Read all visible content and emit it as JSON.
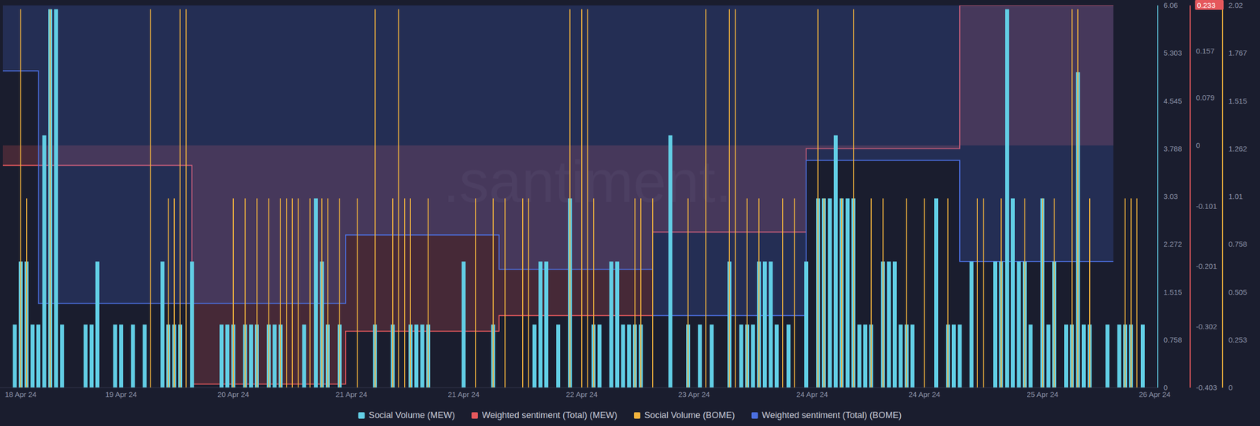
{
  "chart_data": {
    "type": "bar",
    "annotations": [
      ".santiment."
    ],
    "legend": "bottom",
    "categories": [
      null,
      null,
      null,
      "18 Apr 24",
      null,
      null,
      null,
      null,
      null,
      null,
      null,
      null,
      null,
      null,
      null,
      null,
      null,
      null,
      null,
      null,
      "19 Apr 24",
      null,
      null,
      null,
      null,
      null,
      null,
      null,
      null,
      null,
      null,
      null,
      null,
      null,
      null,
      null,
      null,
      null,
      null,
      "20 Apr 24",
      null,
      null,
      null,
      null,
      null,
      null,
      null,
      null,
      null,
      null,
      null,
      null,
      null,
      null,
      null,
      null,
      null,
      null,
      null,
      "21 Apr 24",
      null,
      null,
      null,
      null,
      null,
      null,
      null,
      null,
      null,
      null,
      null,
      null,
      null,
      null,
      null,
      null,
      null,
      null,
      "21 Apr 24",
      null,
      null,
      null,
      null,
      null,
      null,
      null,
      null,
      null,
      null,
      null,
      null,
      null,
      null,
      null,
      null,
      null,
      null,
      null,
      "22 Apr 24",
      null,
      null,
      null,
      null,
      null,
      null,
      null,
      null,
      null,
      null,
      null,
      null,
      null,
      null,
      null,
      null,
      null,
      null,
      "23 Apr 24",
      null,
      null,
      null,
      null,
      null,
      null,
      null,
      null,
      null,
      null,
      null,
      null,
      null,
      null,
      null,
      null,
      null,
      null,
      null,
      "24 Apr 24",
      null,
      null,
      null,
      null,
      null,
      null,
      null,
      null,
      null,
      null,
      null,
      null,
      null,
      null,
      null,
      null,
      null,
      null,
      "24 Apr 24",
      null,
      null,
      null,
      null,
      null,
      null,
      null,
      null,
      null,
      null,
      null,
      null,
      null,
      null,
      null,
      null,
      null,
      null,
      null,
      "25 Apr 24",
      null,
      null,
      null,
      null,
      null,
      null,
      null,
      null,
      null,
      null,
      null,
      null,
      null,
      null,
      null,
      null,
      null,
      null,
      "26 Apr 24"
    ],
    "ylim": [
      0,
      6.06
    ],
    "yticks": [
      0,
      0.758,
      1.515,
      2.272,
      3.03,
      3.788,
      4.545,
      5.303,
      6.06
    ],
    "y2lim": [
      -0.403,
      0.233
    ],
    "y2ticks": [
      -0.403,
      -0.302,
      -0.201,
      -0.101,
      0,
      0.079,
      0.157,
      0.233
    ],
    "y3lim": [
      0,
      2.02
    ],
    "y3ticks": [
      0,
      0.253,
      0.505,
      0.758,
      1.01,
      1.262,
      1.515,
      1.767,
      2.02
    ],
    "series": [
      {
        "name": "Social Volume (MEW)",
        "color": "#62cfe6",
        "type": "bar",
        "axis": "y",
        "values": [
          0,
          0,
          1,
          2,
          2,
          1,
          1,
          4,
          6,
          6,
          1,
          0,
          0,
          0,
          1,
          1,
          2,
          0,
          0,
          1,
          1,
          0,
          1,
          0,
          1,
          0,
          0,
          2,
          1,
          1,
          1,
          0,
          2,
          0,
          0,
          0,
          0,
          1,
          1,
          1,
          0,
          1,
          1,
          1,
          0,
          1,
          1,
          1,
          0,
          0,
          0,
          1,
          0,
          3,
          2,
          1,
          0,
          1,
          0,
          0,
          0,
          0,
          0,
          1,
          0,
          0,
          1,
          0,
          0,
          1,
          1,
          1,
          1,
          0,
          0,
          0,
          0,
          0,
          2,
          0,
          0,
          0,
          0,
          1,
          0,
          0,
          0,
          0,
          0,
          0,
          1,
          2,
          2,
          0,
          1,
          0,
          3,
          0,
          0,
          0,
          1,
          1,
          0,
          2,
          2,
          1,
          1,
          1,
          1,
          0,
          0,
          0,
          0,
          4,
          0,
          0,
          1,
          0,
          1,
          0,
          1,
          0,
          0,
          2,
          0,
          1,
          1,
          1,
          2,
          2,
          2,
          1,
          0,
          1,
          0,
          0,
          2,
          0,
          3,
          3,
          3,
          4,
          3,
          3,
          3,
          1,
          1,
          1,
          0,
          2,
          2,
          2,
          1,
          1,
          1,
          0,
          0,
          0,
          3,
          0,
          1,
          1,
          1,
          0,
          2,
          0,
          0,
          0,
          2,
          2,
          6,
          3,
          2,
          2,
          1,
          0,
          3,
          1,
          2,
          0,
          1,
          1,
          5,
          1,
          1,
          0,
          0,
          1,
          0,
          1,
          1,
          1,
          0,
          1,
          0,
          0
        ]
      },
      {
        "name": "Weighted sentiment (Total) (MEW)",
        "color": "#e5585c",
        "type": "area",
        "line_style": "step",
        "axis": "y2",
        "values": [
          -0.033,
          -0.033,
          -0.033,
          -0.033,
          -0.033,
          -0.033,
          -0.033,
          -0.033,
          -0.033,
          -0.033,
          -0.033,
          -0.033,
          -0.033,
          -0.033,
          -0.033,
          -0.033,
          -0.033,
          -0.033,
          -0.033,
          -0.033,
          -0.033,
          -0.033,
          -0.033,
          -0.033,
          -0.033,
          -0.033,
          -0.033,
          -0.033,
          -0.033,
          -0.033,
          -0.033,
          -0.033,
          -0.397,
          -0.397,
          -0.397,
          -0.397,
          -0.397,
          -0.397,
          -0.397,
          -0.397,
          -0.397,
          -0.397,
          -0.397,
          -0.397,
          -0.397,
          -0.397,
          -0.397,
          -0.397,
          -0.397,
          -0.397,
          -0.397,
          -0.397,
          -0.397,
          -0.397,
          -0.397,
          -0.397,
          -0.397,
          -0.397,
          -0.309,
          -0.309,
          -0.309,
          -0.309,
          -0.309,
          -0.309,
          -0.309,
          -0.309,
          -0.309,
          -0.309,
          -0.309,
          -0.309,
          -0.309,
          -0.309,
          -0.309,
          -0.309,
          -0.309,
          -0.309,
          -0.309,
          -0.309,
          -0.309,
          -0.309,
          -0.309,
          -0.309,
          -0.309,
          -0.309,
          -0.283,
          -0.283,
          -0.283,
          -0.283,
          -0.283,
          -0.283,
          -0.283,
          -0.283,
          -0.283,
          -0.283,
          -0.283,
          -0.283,
          -0.283,
          -0.283,
          -0.283,
          -0.283,
          -0.283,
          -0.283,
          -0.283,
          -0.283,
          -0.283,
          -0.283,
          -0.283,
          -0.283,
          -0.283,
          -0.283,
          -0.144,
          -0.144,
          -0.144,
          -0.144,
          -0.144,
          -0.144,
          -0.144,
          -0.144,
          -0.144,
          -0.144,
          -0.144,
          -0.144,
          -0.144,
          -0.144,
          -0.144,
          -0.144,
          -0.144,
          -0.144,
          -0.144,
          -0.144,
          -0.144,
          -0.144,
          -0.144,
          -0.144,
          -0.144,
          -0.144,
          -0.005,
          -0.005,
          -0.005,
          -0.005,
          -0.005,
          -0.005,
          -0.005,
          -0.005,
          -0.005,
          -0.005,
          -0.005,
          -0.005,
          -0.005,
          -0.005,
          -0.005,
          -0.005,
          -0.005,
          -0.005,
          -0.005,
          -0.005,
          -0.005,
          -0.005,
          -0.005,
          -0.005,
          -0.005,
          -0.005,
          0.233,
          0.233,
          0.233,
          0.233,
          0.233,
          0.233,
          0.233,
          0.233,
          0.233,
          0.233,
          0.233,
          0.233,
          0.233,
          0.233,
          0.233,
          0.233,
          0.233,
          0.233,
          0.233,
          0.233,
          0.233,
          0.233,
          0.233,
          0.233,
          0.233,
          0.233,
          0.233,
          null,
          null,
          null,
          null,
          null,
          null,
          null
        ]
      },
      {
        "name": "Social Volume (BOME)",
        "color": "#f2b33d",
        "type": "bar",
        "axis": "y3",
        "values": [
          0,
          0,
          0,
          2,
          1,
          0,
          0,
          0,
          2,
          0,
          0,
          0,
          0,
          0,
          0,
          0,
          0,
          0,
          0,
          0,
          0,
          0,
          0,
          0,
          0,
          2,
          0,
          0,
          1,
          1,
          2,
          2,
          0,
          0,
          0,
          0,
          0,
          0,
          0,
          1,
          0,
          1,
          0,
          1,
          0,
          1,
          0,
          1,
          1,
          1,
          1,
          0,
          1,
          0,
          1,
          1,
          0,
          1,
          0,
          0,
          1,
          0,
          0,
          2,
          0,
          0,
          1,
          2,
          1,
          1,
          0,
          0,
          1,
          0,
          0,
          0,
          0,
          0,
          0,
          0,
          1,
          0,
          0,
          1,
          0,
          1,
          0,
          0,
          1,
          1,
          0,
          0,
          0,
          0,
          0,
          0,
          2,
          0,
          2,
          2,
          1,
          0,
          0,
          0,
          0,
          0,
          0,
          1,
          1,
          0,
          1,
          0,
          0,
          0,
          0,
          0,
          1,
          0,
          0,
          2,
          0,
          0,
          0,
          2,
          2,
          0,
          1,
          0,
          1,
          0,
          0,
          0,
          1,
          0,
          1,
          0,
          0,
          0,
          2,
          1,
          0,
          0,
          1,
          0,
          2,
          0,
          0,
          1,
          0,
          1,
          0,
          0,
          0,
          1,
          0,
          0,
          1,
          0,
          0,
          0,
          1,
          0,
          0,
          0,
          0,
          1,
          1,
          0,
          0,
          1,
          0,
          0,
          0,
          1,
          0,
          0,
          1,
          0,
          1,
          0,
          0,
          2,
          2,
          0,
          1,
          0,
          0,
          0,
          0,
          0,
          1,
          1,
          1,
          0,
          0,
          0
        ]
      },
      {
        "name": "Weighted sentiment (Total) (BOME)",
        "color": "#4b6fe0",
        "type": "area",
        "line_style": "step",
        "axis": "y2",
        "values": [
          0.124,
          0.124,
          0.124,
          0.124,
          0.124,
          0.124,
          -0.263,
          -0.263,
          -0.263,
          -0.263,
          -0.263,
          -0.263,
          -0.263,
          -0.263,
          -0.263,
          -0.263,
          -0.263,
          -0.263,
          -0.263,
          -0.263,
          -0.263,
          -0.263,
          -0.263,
          -0.263,
          -0.263,
          -0.263,
          -0.263,
          -0.263,
          -0.263,
          -0.263,
          -0.263,
          -0.263,
          -0.263,
          -0.263,
          -0.263,
          -0.263,
          -0.263,
          -0.263,
          -0.263,
          -0.263,
          -0.263,
          -0.263,
          -0.263,
          -0.263,
          -0.263,
          -0.263,
          -0.263,
          -0.263,
          -0.263,
          -0.263,
          -0.263,
          -0.263,
          -0.263,
          -0.263,
          -0.263,
          -0.263,
          -0.263,
          -0.263,
          -0.149,
          -0.149,
          -0.149,
          -0.149,
          -0.149,
          -0.149,
          -0.149,
          -0.149,
          -0.149,
          -0.149,
          -0.149,
          -0.149,
          -0.149,
          -0.149,
          -0.149,
          -0.149,
          -0.149,
          -0.149,
          -0.149,
          -0.149,
          -0.149,
          -0.149,
          -0.149,
          -0.149,
          -0.149,
          -0.149,
          -0.206,
          -0.206,
          -0.206,
          -0.206,
          -0.206,
          -0.206,
          -0.206,
          -0.206,
          -0.206,
          -0.206,
          -0.206,
          -0.206,
          -0.206,
          -0.206,
          -0.206,
          -0.206,
          -0.206,
          -0.206,
          -0.206,
          -0.206,
          -0.206,
          -0.206,
          -0.206,
          -0.206,
          -0.206,
          -0.206,
          -0.283,
          -0.283,
          -0.283,
          -0.283,
          -0.283,
          -0.283,
          -0.283,
          -0.283,
          -0.283,
          -0.283,
          -0.283,
          -0.283,
          -0.283,
          -0.283,
          -0.283,
          -0.283,
          -0.283,
          -0.283,
          -0.283,
          -0.283,
          -0.283,
          -0.283,
          -0.283,
          -0.283,
          -0.283,
          -0.283,
          -0.025,
          -0.025,
          -0.025,
          -0.025,
          -0.025,
          -0.025,
          -0.025,
          -0.025,
          -0.025,
          -0.025,
          -0.025,
          -0.025,
          -0.025,
          -0.025,
          -0.025,
          -0.025,
          -0.025,
          -0.025,
          -0.025,
          -0.025,
          -0.025,
          -0.025,
          -0.025,
          -0.025,
          -0.025,
          -0.025,
          -0.193,
          -0.193,
          -0.193,
          -0.193,
          -0.193,
          -0.193,
          -0.193,
          -0.193,
          -0.193,
          -0.193,
          -0.193,
          -0.193,
          -0.193,
          -0.193,
          -0.193,
          -0.193,
          -0.193,
          -0.193,
          -0.193,
          -0.193,
          -0.193,
          -0.193,
          -0.193,
          -0.193,
          -0.193,
          -0.193,
          -0.193,
          null,
          null,
          null,
          null,
          null,
          null,
          null
        ]
      }
    ]
  }
}
